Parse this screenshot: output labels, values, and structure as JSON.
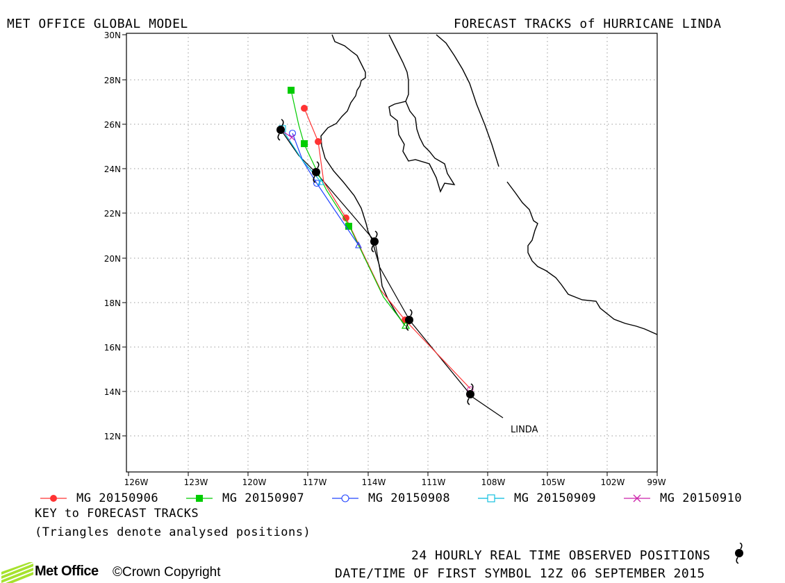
{
  "header": {
    "left_title": "MET OFFICE GLOBAL MODEL",
    "right_title": "FORECAST TRACKS of HURRICANE LINDA"
  },
  "map": {
    "lon_ticks": [
      "126W",
      "123W",
      "120W",
      "117W",
      "114W",
      "111W",
      "108W",
      "105W",
      "102W",
      "99W"
    ],
    "lat_ticks": [
      "12N",
      "14N",
      "16N",
      "18N",
      "20N",
      "22N",
      "24N",
      "26N",
      "28N",
      "30N"
    ],
    "storm_label": "LINDA",
    "colors": {
      "run_0906": "#ff3333",
      "run_0907": "#00cc00",
      "run_0908": "#2244ff",
      "run_0909": "#00bbdd",
      "run_0910": "#cc22aa",
      "observed": "#000000"
    }
  },
  "legend": {
    "items": [
      {
        "label": "MG 20150906",
        "color": "#ff3333",
        "marker": "filled-circle"
      },
      {
        "label": "MG 20150907",
        "color": "#00cc00",
        "marker": "filled-square"
      },
      {
        "label": "MG 20150908",
        "color": "#2244ff",
        "marker": "open-circle"
      },
      {
        "label": "MG 20150909",
        "color": "#00bbdd",
        "marker": "open-square"
      },
      {
        "label": "MG 20150910",
        "color": "#cc22aa",
        "marker": "cross"
      }
    ],
    "key_title": "KEY to FORECAST TRACKS",
    "key_note": "(Triangles denote analysed positions)"
  },
  "footer": {
    "observed_note": "24 HOURLY REAL TIME OBSERVED POSITIONS",
    "first_symbol": "DATE/TIME OF FIRST SYMBOL 12Z 06 SEPTEMBER 2015",
    "brand": "Met Office",
    "copyright": "©Crown Copyright"
  },
  "icons": {
    "observed_symbol": "hurricane-symbol-icon",
    "logo": "met-office-logo-icon"
  }
}
